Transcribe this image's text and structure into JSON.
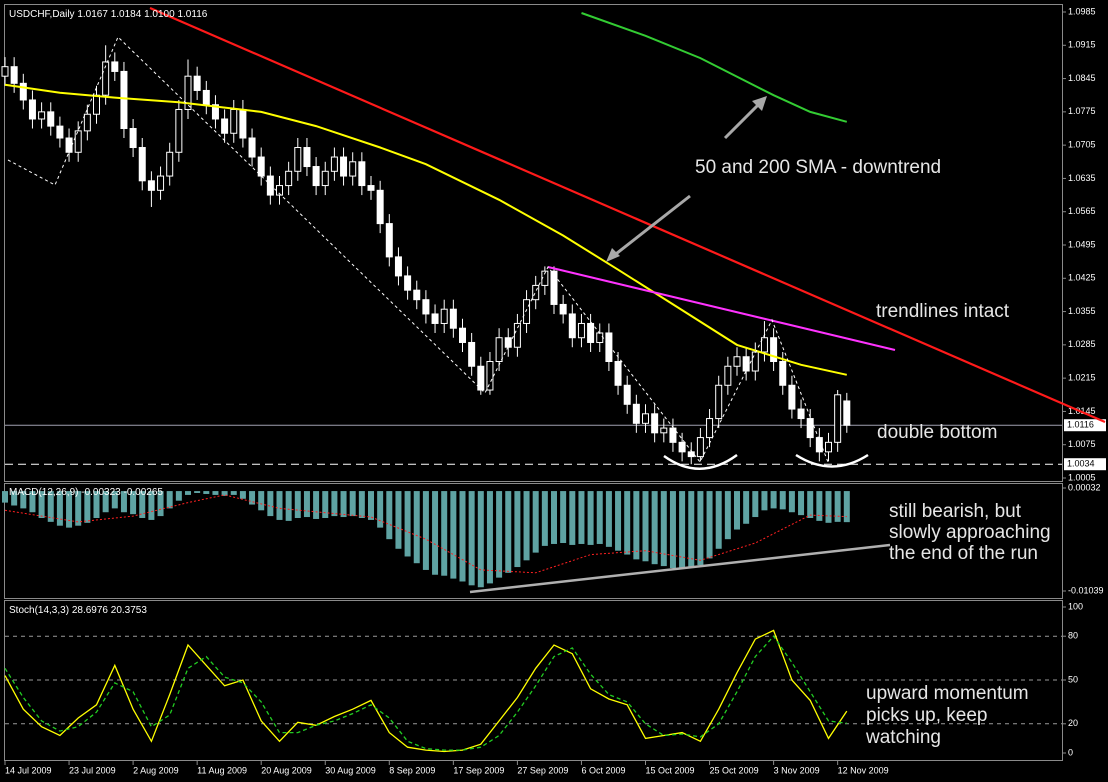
{
  "chart_data": [
    {
      "type": "candlestick",
      "title": "USDCHF,Daily",
      "last_labels": [
        "1.0167",
        "1.0184",
        "1.0100",
        "1.0116"
      ],
      "open": [
        1.085,
        1.087,
        1.0835,
        1.08,
        1.076,
        1.0775,
        1.0745,
        1.072,
        1.069,
        1.0735,
        1.077,
        1.081,
        1.088,
        1.086,
        1.074,
        1.07,
        1.063,
        1.061,
        1.064,
        1.069,
        1.078,
        1.085,
        1.082,
        1.079,
        1.076,
        1.073,
        1.078,
        1.072,
        1.068,
        1.064,
        1.06,
        1.062,
        1.065,
        1.07,
        1.066,
        1.062,
        1.065,
        1.068,
        1.064,
        1.067,
        1.062,
        1.061,
        1.054,
        1.047,
        1.043,
        1.04,
        1.038,
        1.035,
        1.033,
        1.036,
        1.032,
        1.029,
        1.024,
        1.019,
        1.025,
        1.03,
        1.028,
        1.033,
        1.038,
        1.041,
        1.044,
        1.037,
        1.035,
        1.03,
        1.033,
        1.029,
        1.031,
        1.025,
        1.02,
        1.016,
        1.012,
        1.014,
        1.01,
        1.011,
        1.008,
        1.006,
        1.005,
        1.009,
        1.013,
        1.02,
        1.024,
        1.026,
        1.023,
        1.027,
        1.03,
        1.025,
        1.02,
        1.015,
        1.013,
        1.009,
        1.006,
        1.008,
        1.0167
      ],
      "high": [
        1.089,
        1.089,
        1.0855,
        1.082,
        1.0795,
        1.0795,
        1.0765,
        1.074,
        1.0755,
        1.079,
        1.083,
        1.0915,
        1.09,
        1.088,
        1.076,
        1.072,
        1.065,
        1.066,
        1.071,
        1.08,
        1.0885,
        1.087,
        1.084,
        1.081,
        1.078,
        1.08,
        1.08,
        1.074,
        1.07,
        1.066,
        1.064,
        1.067,
        1.072,
        1.072,
        1.068,
        1.067,
        1.07,
        1.07,
        1.069,
        1.069,
        1.064,
        1.063,
        1.056,
        1.049,
        1.045,
        1.042,
        1.04,
        1.037,
        1.038,
        1.038,
        1.034,
        1.031,
        1.026,
        1.027,
        1.032,
        1.032,
        1.035,
        1.04,
        1.043,
        1.045,
        1.045,
        1.039,
        1.037,
        1.035,
        1.035,
        1.033,
        1.033,
        1.027,
        1.022,
        1.018,
        1.016,
        1.016,
        1.013,
        1.013,
        1.01,
        1.008,
        1.011,
        1.015,
        1.022,
        1.026,
        1.028,
        1.028,
        1.029,
        1.0335,
        1.032,
        1.027,
        1.022,
        1.017,
        1.015,
        1.011,
        1.01,
        1.019,
        1.0184
      ],
      "low": [
        1.083,
        1.0815,
        1.078,
        1.074,
        1.074,
        1.0725,
        1.07,
        1.067,
        1.067,
        1.0715,
        1.075,
        1.079,
        1.084,
        1.072,
        1.068,
        1.061,
        1.0575,
        1.059,
        1.062,
        1.067,
        1.076,
        1.08,
        1.077,
        1.074,
        1.071,
        1.071,
        1.07,
        1.066,
        1.062,
        1.058,
        1.058,
        1.06,
        1.063,
        1.064,
        1.06,
        1.06,
        1.063,
        1.062,
        1.062,
        1.06,
        1.059,
        1.052,
        1.045,
        1.041,
        1.038,
        1.036,
        1.033,
        1.031,
        1.031,
        1.03,
        1.027,
        1.022,
        1.018,
        1.018,
        1.023,
        1.026,
        1.026,
        1.031,
        1.036,
        1.039,
        1.035,
        1.033,
        1.028,
        1.028,
        1.027,
        1.027,
        1.023,
        1.018,
        1.014,
        1.01,
        1.01,
        1.008,
        1.008,
        1.006,
        1.004,
        1.0034,
        1.004,
        1.007,
        1.011,
        1.018,
        1.022,
        1.021,
        1.021,
        1.025,
        1.023,
        1.018,
        1.013,
        1.011,
        1.007,
        1.004,
        1.004,
        1.006,
        1.01
      ],
      "close": [
        1.087,
        1.0835,
        1.08,
        1.076,
        1.0775,
        1.0745,
        1.072,
        1.069,
        1.0735,
        1.077,
        1.081,
        1.088,
        1.086,
        1.074,
        1.07,
        1.063,
        1.061,
        1.064,
        1.069,
        1.078,
        1.085,
        1.082,
        1.079,
        1.076,
        1.073,
        1.078,
        1.072,
        1.068,
        1.064,
        1.06,
        1.062,
        1.065,
        1.07,
        1.066,
        1.062,
        1.065,
        1.068,
        1.064,
        1.067,
        1.062,
        1.061,
        1.054,
        1.047,
        1.043,
        1.04,
        1.038,
        1.035,
        1.033,
        1.036,
        1.032,
        1.029,
        1.024,
        1.019,
        1.025,
        1.03,
        1.028,
        1.033,
        1.038,
        1.041,
        1.044,
        1.037,
        1.035,
        1.03,
        1.033,
        1.029,
        1.031,
        1.025,
        1.02,
        1.016,
        1.012,
        1.014,
        1.01,
        1.011,
        1.008,
        1.006,
        1.005,
        1.009,
        1.013,
        1.02,
        1.024,
        1.026,
        1.023,
        1.027,
        1.03,
        1.025,
        1.02,
        1.015,
        1.013,
        1.009,
        1.006,
        1.008,
        1.018,
        1.0116
      ],
      "up_color": "#000000",
      "down_color": "#ffffff",
      "wick_color": "#ffffff",
      "ylim": [
        1.0005,
        1.0985
      ],
      "yticks": [
        1.0005,
        1.0075,
        1.0145,
        1.0215,
        1.0285,
        1.0355,
        1.0425,
        1.0495,
        1.0565,
        1.0635,
        1.0705,
        1.0775,
        1.0845,
        1.0915,
        1.0985
      ],
      "price_lines": [
        1.0116,
        1.0034
      ],
      "xticks": [
        {
          "value": 0,
          "label": "14 Jul 2009"
        },
        {
          "value": 7,
          "label": "23 Jul 2009"
        },
        {
          "value": 14,
          "label": "2 Aug 2009"
        },
        {
          "value": 21,
          "label": "11 Aug 2009"
        },
        {
          "value": 28,
          "label": "20 Aug 2009"
        },
        {
          "value": 35,
          "label": "30 Aug 2009"
        },
        {
          "value": 42,
          "label": "8 Sep 2009"
        },
        {
          "value": 49,
          "label": "17 Sep 2009"
        },
        {
          "value": 56,
          "label": "27 Sep 2009"
        },
        {
          "value": 63,
          "label": "6 Oct 2009"
        },
        {
          "value": 70,
          "label": "15 Oct 2009"
        },
        {
          "value": 77,
          "label": "25 Oct 2009"
        },
        {
          "value": 84,
          "label": "3 Nov 2009"
        },
        {
          "value": 91,
          "label": "12 Nov 2009"
        }
      ],
      "moving_averages": [
        {
          "color": "#ffff00",
          "x": [
            0,
            6,
            12,
            19,
            28,
            34,
            41,
            46,
            54,
            61,
            67,
            74,
            80,
            87,
            92
          ],
          "values": [
            1.0832,
            1.0815,
            1.0805,
            1.0795,
            1.0775,
            1.0745,
            1.07,
            1.0665,
            1.059,
            1.0515,
            1.0443,
            1.0358,
            1.0285,
            1.0243,
            1.0222
          ]
        },
        {
          "color": "#33cc33",
          "x": [
            63,
            70,
            76,
            84,
            88,
            92
          ],
          "values": [
            1.0983,
            1.0935,
            1.0888,
            1.081,
            1.0775,
            1.0754
          ]
        }
      ],
      "annotations": [
        "50 and 200 SMA - downtrend",
        "trendlines intact",
        "double bottom"
      ]
    },
    {
      "type": "macd",
      "title": "MACD(12,26,9)",
      "histogram": [
        -0.0012,
        -0.0015,
        -0.0018,
        -0.0022,
        -0.0028,
        -0.0032,
        -0.0036,
        -0.0038,
        -0.0036,
        -0.0033,
        -0.0028,
        -0.0022,
        -0.0018,
        -0.0022,
        -0.0024,
        -0.0028,
        -0.003,
        -0.0026,
        -0.0018,
        -0.001,
        -0.0004,
        -0.0002,
        -0.0003,
        -0.0004,
        -0.0005,
        -0.0004,
        -0.0008,
        -0.0014,
        -0.002,
        -0.0026,
        -0.003,
        -0.0031,
        -0.0028,
        -0.0027,
        -0.0029,
        -0.0028,
        -0.0026,
        -0.0027,
        -0.0026,
        -0.0028,
        -0.003,
        -0.0038,
        -0.005,
        -0.006,
        -0.0068,
        -0.0075,
        -0.0082,
        -0.0087,
        -0.0088,
        -0.0091,
        -0.0094,
        -0.0098,
        -0.01,
        -0.0096,
        -0.009,
        -0.0085,
        -0.0079,
        -0.0072,
        -0.0064,
        -0.0057,
        -0.0055,
        -0.0054,
        -0.0056,
        -0.0055,
        -0.0056,
        -0.0055,
        -0.0058,
        -0.0062,
        -0.0066,
        -0.0071,
        -0.0073,
        -0.0076,
        -0.0078,
        -0.008,
        -0.0081,
        -0.008,
        -0.0077,
        -0.007,
        -0.006,
        -0.005,
        -0.004,
        -0.0034,
        -0.0027,
        -0.002,
        -0.0018,
        -0.0019,
        -0.0022,
        -0.0025,
        -0.0028,
        -0.0031,
        -0.0033,
        -0.0032,
        -0.00323
      ],
      "signal": {
        "x": [
          0,
          8,
          14,
          20,
          24,
          30,
          40,
          46,
          52,
          58,
          64,
          70,
          76,
          82,
          88,
          92
        ],
        "values": [
          -0.002,
          -0.0032,
          -0.0026,
          -0.0012,
          -0.0004,
          -0.0018,
          -0.0027,
          -0.005,
          -0.0082,
          -0.0085,
          -0.0066,
          -0.0062,
          -0.0072,
          -0.0054,
          -0.0025,
          -0.00265
        ]
      },
      "color": "#5fa3a3",
      "signal_color": "#ff2020",
      "ylim": [
        -0.01039,
        0.00032
      ],
      "yticks": [
        -0.01039,
        0.00032
      ],
      "annotation": [
        "still bearish, but",
        "slowly approaching",
        "the end of the run"
      ]
    },
    {
      "type": "stochastic",
      "title": "Stoch(14,3,3)",
      "x": [
        0,
        2,
        4,
        6,
        8,
        10,
        12,
        14,
        16,
        18,
        20,
        22,
        24,
        26,
        28,
        30,
        32,
        34,
        36,
        38,
        40,
        42,
        44,
        46,
        48,
        50,
        52,
        54,
        56,
        58,
        60,
        62,
        64,
        66,
        68,
        70,
        72,
        74,
        76,
        78,
        80,
        82,
        84,
        86,
        88,
        90,
        92
      ],
      "series": [
        {
          "color": "#ffff00",
          "values": [
            53,
            30,
            18,
            12,
            24,
            33,
            60,
            30,
            8,
            40,
            74,
            60,
            46,
            50,
            22,
            8,
            21,
            19,
            25,
            30,
            36,
            14,
            4,
            2,
            1,
            2,
            6,
            22,
            38,
            58,
            74,
            68,
            44,
            37,
            33,
            10,
            12,
            14,
            8,
            30,
            55,
            78,
            84,
            50,
            36,
            10,
            28.6976
          ]
        },
        {
          "color": "#22cc22",
          "values": [
            58,
            38,
            22,
            15,
            18,
            28,
            48,
            42,
            18,
            26,
            58,
            66,
            52,
            48,
            35,
            14,
            14,
            19,
            22,
            27,
            33,
            24,
            8,
            3,
            2,
            2,
            4,
            12,
            28,
            46,
            66,
            72,
            54,
            40,
            35,
            20,
            12,
            13,
            11,
            20,
            42,
            66,
            80,
            62,
            42,
            22,
            20.3753
          ]
        }
      ],
      "ylim": [
        0,
        100
      ],
      "yticks": [
        0,
        20,
        50,
        80,
        100
      ],
      "annotation": [
        "upward momentum",
        "picks up, keep",
        "watching"
      ]
    }
  ]
}
